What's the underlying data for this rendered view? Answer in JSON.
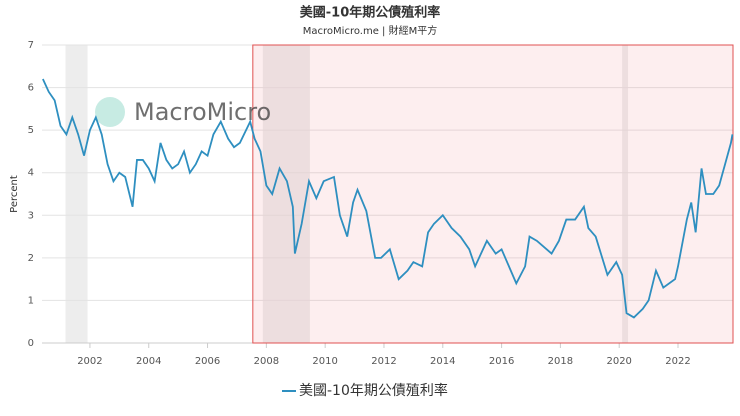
{
  "chart_data": {
    "type": "line",
    "title": "美國-10年期公債殖利率",
    "subtitle": "MacroMicro.me | 財經M平方",
    "watermark": "MacroMicro",
    "ylabel": "Percent",
    "xlim": [
      2000.37,
      2023.87
    ],
    "xticks": [
      2002,
      2004,
      2006,
      2008,
      2010,
      2012,
      2014,
      2016,
      2018,
      2020,
      2022
    ],
    "ylim": [
      0,
      7
    ],
    "yticks": [
      0,
      1,
      2,
      3,
      4,
      5,
      6,
      7
    ],
    "grid": true,
    "recessions": [
      [
        2001.17,
        2001.92
      ],
      [
        2007.88,
        2009.48
      ],
      [
        2020.1,
        2020.3
      ]
    ],
    "highlight_range": [
      2007.54,
      2023.87
    ],
    "x": [
      2000.4,
      2000.6,
      2000.8,
      2001.0,
      2001.2,
      2001.4,
      2001.6,
      2001.8,
      2002.0,
      2002.2,
      2002.4,
      2002.6,
      2002.8,
      2003.0,
      2003.2,
      2003.45,
      2003.6,
      2003.8,
      2004.0,
      2004.2,
      2004.4,
      2004.6,
      2004.8,
      2005.0,
      2005.2,
      2005.4,
      2005.6,
      2005.8,
      2006.0,
      2006.2,
      2006.45,
      2006.7,
      2006.9,
      2007.1,
      2007.45,
      2007.6,
      2007.8,
      2008.0,
      2008.2,
      2008.45,
      2008.7,
      2008.9,
      2008.97,
      2009.2,
      2009.45,
      2009.7,
      2009.95,
      2010.3,
      2010.5,
      2010.75,
      2010.95,
      2011.1,
      2011.4,
      2011.7,
      2011.9,
      2012.2,
      2012.5,
      2012.8,
      2013.0,
      2013.3,
      2013.5,
      2013.7,
      2014.0,
      2014.3,
      2014.6,
      2014.9,
      2015.1,
      2015.5,
      2015.8,
      2016.0,
      2016.5,
      2016.8,
      2016.95,
      2017.2,
      2017.7,
      2017.95,
      2018.2,
      2018.5,
      2018.8,
      2018.95,
      2019.2,
      2019.6,
      2019.9,
      2020.1,
      2020.25,
      2020.5,
      2020.8,
      2021.0,
      2021.25,
      2021.5,
      2021.9,
      2022.0,
      2022.3,
      2022.45,
      2022.6,
      2022.8,
      2022.95,
      2023.2,
      2023.4,
      2023.6,
      2023.8,
      2023.85
    ],
    "series": [
      {
        "name": "美國-10年期公債殖利率",
        "color": "#2e8fc0",
        "values": [
          6.2,
          5.9,
          5.7,
          5.1,
          4.9,
          5.3,
          4.9,
          4.4,
          5.0,
          5.3,
          4.9,
          4.2,
          3.8,
          4.0,
          3.9,
          3.2,
          4.3,
          4.3,
          4.1,
          3.8,
          4.7,
          4.3,
          4.1,
          4.2,
          4.5,
          4.0,
          4.2,
          4.5,
          4.4,
          4.9,
          5.2,
          4.8,
          4.6,
          4.7,
          5.2,
          4.8,
          4.5,
          3.7,
          3.5,
          4.1,
          3.8,
          3.2,
          2.1,
          2.8,
          3.8,
          3.4,
          3.8,
          3.9,
          3.0,
          2.5,
          3.3,
          3.6,
          3.1,
          2.0,
          2.0,
          2.2,
          1.5,
          1.7,
          1.9,
          1.8,
          2.6,
          2.8,
          3.0,
          2.7,
          2.5,
          2.2,
          1.8,
          2.4,
          2.1,
          2.2,
          1.4,
          1.8,
          2.5,
          2.4,
          2.1,
          2.4,
          2.9,
          2.9,
          3.2,
          2.7,
          2.5,
          1.6,
          1.9,
          1.6,
          0.7,
          0.6,
          0.8,
          1.0,
          1.7,
          1.3,
          1.5,
          1.8,
          2.9,
          3.3,
          2.6,
          4.1,
          3.5,
          3.5,
          3.7,
          4.2,
          4.7,
          4.9
        ]
      }
    ]
  }
}
